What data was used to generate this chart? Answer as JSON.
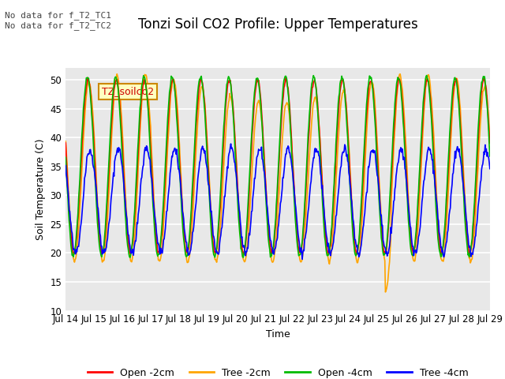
{
  "title": "Tonzi Soil CO2 Profile: Upper Temperatures",
  "xlabel": "Time",
  "ylabel": "Soil Temperature (C)",
  "ylim": [
    10,
    52
  ],
  "legend_labels": [
    "Open -2cm",
    "Tree -2cm",
    "Open -4cm",
    "Tree -4cm"
  ],
  "legend_colors": [
    "#ff0000",
    "#ffa500",
    "#00bb00",
    "#0000ff"
  ],
  "annotation_text": "No data for f_T2_TC1\nNo data for f_T2_TC2",
  "cursor_label": "TZ_soilco2",
  "yticks": [
    10,
    15,
    20,
    25,
    30,
    35,
    40,
    45,
    50
  ],
  "xtick_labels": [
    "Jul 14",
    "Jul 15",
    "Jul 16",
    "Jul 17",
    "Jul 18",
    "Jul 19",
    "Jul 20",
    "Jul 21",
    "Jul 22",
    "Jul 23",
    "Jul 24",
    "Jul 25",
    "Jul 26",
    "Jul 27",
    "Jul 28",
    "Jul 29"
  ],
  "plot_bg_color": "#e8e8e8",
  "grid_color": "#ffffff",
  "title_fontsize": 12,
  "axis_fontsize": 9,
  "tick_fontsize": 8.5,
  "annot_fontsize": 8,
  "cursor_fontsize": 9
}
